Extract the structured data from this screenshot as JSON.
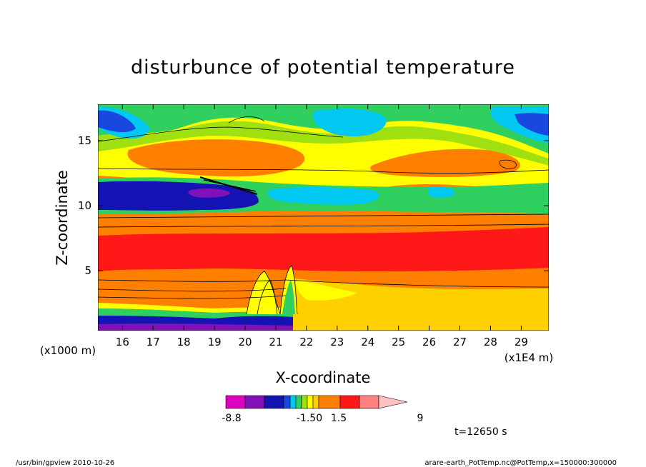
{
  "chart_data": {
    "type": "heatmap",
    "title": "disturbunce of potential temperature",
    "xlabel": "X-coordinate",
    "ylabel": "Z-coordinate",
    "x_unit_left": "(x1000 m)",
    "x_unit_right": "(x1E4 m)",
    "xlim": [
      15.2,
      29.9
    ],
    "ylim": [
      0.4,
      17.8
    ],
    "x_ticks": [
      "16",
      "17",
      "18",
      "19",
      "20",
      "21",
      "22",
      "23",
      "24",
      "25",
      "26",
      "27",
      "28",
      "29"
    ],
    "x_tick_values": [
      16,
      17,
      18,
      19,
      20,
      21,
      22,
      23,
      24,
      25,
      26,
      27,
      28,
      29
    ],
    "y_ticks": [
      "5",
      "10",
      "15"
    ],
    "y_tick_values": [
      5,
      10,
      15
    ],
    "colorbar": {
      "colors": [
        "#e000c0",
        "#8010b8",
        "#1414b4",
        "#1848e0",
        "#00c8f0",
        "#30d060",
        "#a0e010",
        "#ffff00",
        "#ffd000",
        "#ff8000",
        "#ff1818",
        "#ff8080",
        "#ffc0c0"
      ],
      "labels": [
        "-8.8",
        "-1.50",
        "1.5",
        "9"
      ],
      "label_values": [
        -8.8,
        -1.5,
        1.5,
        9
      ]
    },
    "time_label": "t=12650 s"
  },
  "footer": {
    "left": "/usr/bin/gpview   2010-10-26",
    "right": "arare-earth_PotTemp.nc@PotTemp,x=150000:300000"
  }
}
